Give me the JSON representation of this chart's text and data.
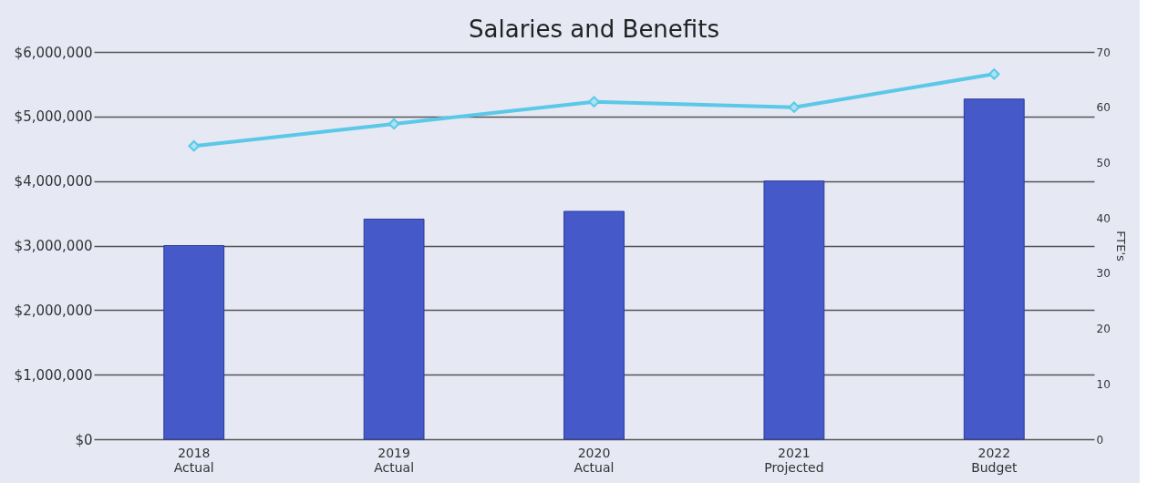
{
  "chart_data": {
    "type": "bar",
    "title": "Salaries and Benefits",
    "categories": [
      "2018\nActual",
      "2019\nActual",
      "2020\nActual",
      "2021\nProjected",
      "2022\nBudget"
    ],
    "series": [
      {
        "color": "#4659c8",
        "values": [
          3000000,
          3410000,
          3530000,
          4000000,
          5270000
        ]
      },
      {
        "type": "line",
        "axis": "y2",
        "color": "#5bc8e8",
        "marker": "diamond",
        "line_style": "solid",
        "values": [
          53,
          57,
          61,
          60,
          66
        ]
      }
    ],
    "y2label": "FTE's",
    "ylim": [
      0,
      6000000
    ],
    "yticks": [
      {
        "value": 0,
        "label": "$0"
      },
      {
        "value": 1000000,
        "label": "$1,000,000"
      },
      {
        "value": 2000000,
        "label": "$2,000,000"
      },
      {
        "value": 3000000,
        "label": "$3,000,000"
      },
      {
        "value": 4000000,
        "label": "$4,000,000"
      },
      {
        "value": 5000000,
        "label": "$5,000,000"
      },
      {
        "value": 6000000,
        "label": "$6,000,000"
      }
    ],
    "y2lim": [
      0,
      70
    ],
    "y2ticks": [
      0,
      10,
      20,
      30,
      40,
      50,
      60,
      70
    ],
    "grid": "y"
  }
}
